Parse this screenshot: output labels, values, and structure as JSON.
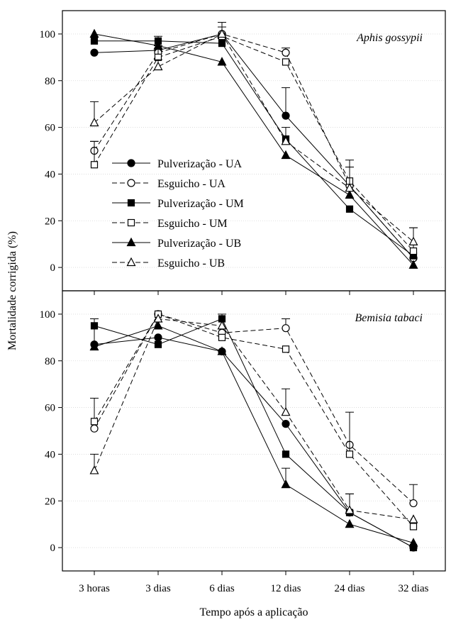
{
  "figure": {
    "ylabel": "Mortalidade corrigida (%)",
    "xlabel": "Tempo após a aplicação"
  },
  "legend": [
    {
      "label": "Pulverização - UA",
      "marker": "circle",
      "filled": true,
      "dashed": false
    },
    {
      "label": "Esguicho - UA",
      "marker": "circle",
      "filled": false,
      "dashed": true
    },
    {
      "label": "Pulverização - UM",
      "marker": "square",
      "filled": true,
      "dashed": false
    },
    {
      "label": "Esguicho - UM",
      "marker": "square",
      "filled": false,
      "dashed": true
    },
    {
      "label": "Pulverização - UB",
      "marker": "triangle",
      "filled": true,
      "dashed": false
    },
    {
      "label": "Esguicho - UB",
      "marker": "triangle",
      "filled": false,
      "dashed": true
    }
  ],
  "chart_data": [
    {
      "type": "line",
      "title": "Aphis gossypii",
      "categories": [
        "3 horas",
        "3 dias",
        "6 dias",
        "12 dias",
        "24 dias",
        "32 dias"
      ],
      "ylim": [
        -10,
        110
      ],
      "yticks": [
        0,
        20,
        40,
        60,
        80,
        100
      ],
      "series": [
        {
          "name": "Pulverização - UA",
          "values": [
            92,
            93,
            100,
            65,
            35,
            4
          ],
          "errors": [
            0,
            0,
            0,
            12,
            0,
            0
          ]
        },
        {
          "name": "Esguicho - UA",
          "values": [
            50,
            92,
            100,
            92,
            35,
            4
          ],
          "errors": [
            4,
            3,
            0,
            2,
            0,
            0
          ]
        },
        {
          "name": "Pulverização - UM",
          "values": [
            97,
            97,
            96,
            55,
            25,
            5
          ],
          "errors": [
            0,
            2,
            2,
            5,
            0,
            0
          ]
        },
        {
          "name": "Esguicho - UM",
          "values": [
            44,
            90,
            99,
            88,
            37,
            7
          ],
          "errors": [
            10,
            5,
            4,
            0,
            9,
            10
          ]
        },
        {
          "name": "Pulverização - UB",
          "values": [
            100,
            95,
            88,
            48,
            31,
            1
          ],
          "errors": [
            0,
            0,
            0,
            0,
            12,
            0
          ]
        },
        {
          "name": "Esguicho - UB",
          "values": [
            62,
            86,
            100,
            54,
            34,
            11
          ],
          "errors": [
            9,
            3,
            5,
            0,
            9,
            6
          ]
        }
      ]
    },
    {
      "type": "line",
      "title": "Bemisia tabaci",
      "categories": [
        "3 horas",
        "3 dias",
        "6 dias",
        "12 dias",
        "24 dias",
        "32 dias"
      ],
      "ylim": [
        -10,
        110
      ],
      "yticks": [
        0,
        20,
        40,
        60,
        80,
        100
      ],
      "series": [
        {
          "name": "Pulverização - UA",
          "values": [
            87,
            90,
            84,
            53,
            15,
            0
          ],
          "errors": [
            0,
            0,
            0,
            0,
            8,
            0
          ]
        },
        {
          "name": "Esguicho - UA",
          "values": [
            51,
            100,
            92,
            94,
            44,
            19
          ],
          "errors": [
            0,
            0,
            0,
            4,
            0,
            8
          ]
        },
        {
          "name": "Pulverização - UM",
          "values": [
            95,
            87,
            98,
            40,
            15,
            0
          ],
          "errors": [
            0,
            0,
            2,
            0,
            0,
            0
          ]
        },
        {
          "name": "Esguicho - UM",
          "values": [
            54,
            100,
            90,
            85,
            40,
            9
          ],
          "errors": [
            10,
            0,
            0,
            0,
            18,
            0
          ]
        },
        {
          "name": "Pulverização - UB",
          "values": [
            86,
            95,
            84,
            27,
            10,
            2
          ],
          "errors": [
            12,
            0,
            0,
            7,
            0,
            0
          ]
        },
        {
          "name": "Esguicho - UB",
          "values": [
            33,
            98,
            95,
            58,
            16,
            12
          ],
          "errors": [
            7,
            0,
            0,
            10,
            7,
            0
          ]
        }
      ]
    }
  ]
}
